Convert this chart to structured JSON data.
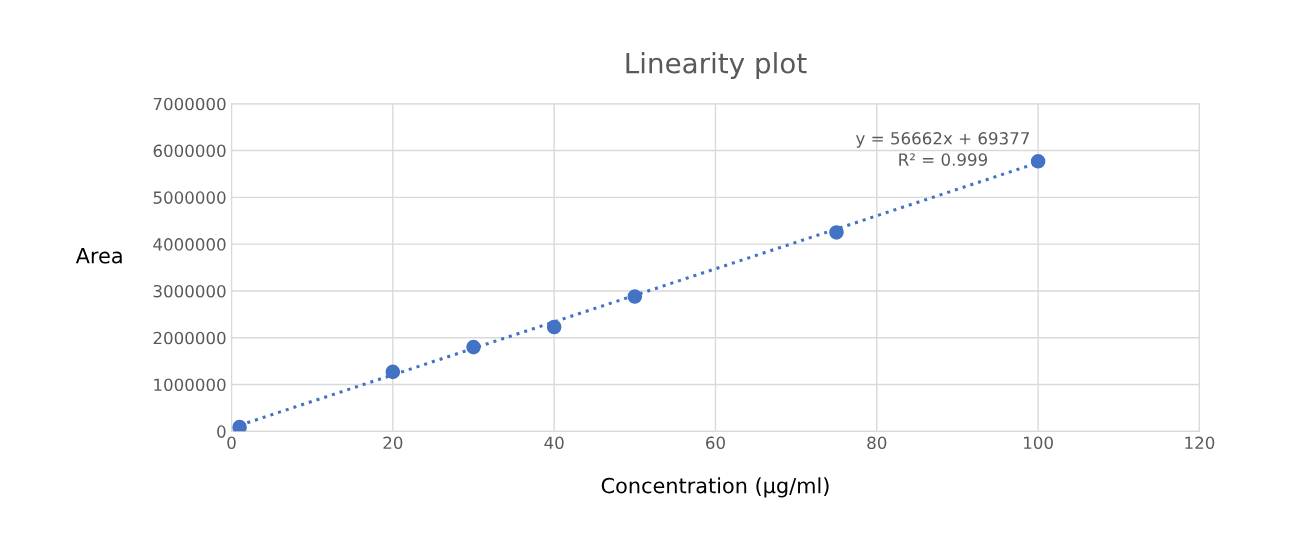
{
  "chart_data": {
    "type": "scatter",
    "title": "Linearity plot",
    "xlabel": "Concentration (µg/ml)",
    "ylabel": "Area",
    "x": [
      1,
      20,
      30,
      40,
      50,
      75,
      100
    ],
    "series": [
      {
        "color": "#4472c4",
        "values": [
          90000,
          1270000,
          1800000,
          2230000,
          2880000,
          4250000,
          5770000
        ],
        "marker": "circle"
      },
      {
        "type": "line",
        "color": "#4472c4",
        "x": [
          1,
          100
        ],
        "values": [
          130000,
          5740000
        ],
        "line_style": "dotted",
        "marker": "none"
      }
    ],
    "annotations": [
      "y = 56662x + 69377",
      "R² = 0.999"
    ],
    "xlim": [
      0,
      120
    ],
    "xticks": [
      0,
      20,
      40,
      60,
      80,
      100,
      120
    ],
    "ylim": [
      0,
      7000000
    ],
    "yticks": [
      0,
      1000000,
      2000000,
      3000000,
      4000000,
      5000000,
      6000000,
      7000000
    ],
    "grid": true,
    "legend": false
  }
}
